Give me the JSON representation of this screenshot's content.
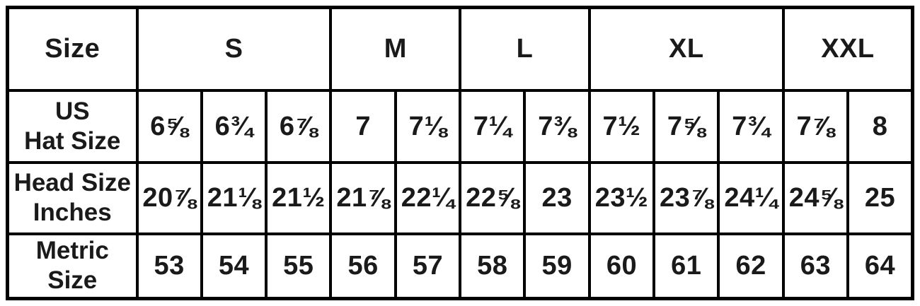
{
  "chart_data": {
    "type": "table",
    "corner_header": "Size",
    "size_groups": [
      {
        "label": "S",
        "span": 3
      },
      {
        "label": "M",
        "span": 2
      },
      {
        "label": "L",
        "span": 2
      },
      {
        "label": "XL",
        "span": 3
      },
      {
        "label": "XXL",
        "span": 2
      }
    ],
    "rows": [
      {
        "name": "us_hat_size",
        "label_lines": [
          "US",
          "Hat Size"
        ],
        "values": [
          "6⅝",
          "6¾",
          "6⅞",
          "7",
          "7⅛",
          "7¼",
          "7⅜",
          "7½",
          "7⅝",
          "7¾",
          "7⅞",
          "8"
        ]
      },
      {
        "name": "head_size_inches",
        "label_lines": [
          "Head Size",
          "Inches"
        ],
        "values": [
          "20⅞",
          "21⅛",
          "21½",
          "21⅞",
          "22¼",
          "22⅝",
          "23",
          "23½",
          "23⅞",
          "24¼",
          "24⅝",
          "25"
        ]
      },
      {
        "name": "metric_size",
        "label_lines": [
          "Metric",
          "Size"
        ],
        "values": [
          "53",
          "54",
          "55",
          "56",
          "57",
          "58",
          "59",
          "60",
          "61",
          "62",
          "63",
          "64"
        ]
      }
    ],
    "layout": {
      "columns_per_group": [
        3,
        2,
        2,
        3,
        2
      ],
      "grid": "on"
    },
    "colors": {
      "border": "#000000",
      "background": "#ffffff",
      "text": "#1a1a1a"
    }
  }
}
